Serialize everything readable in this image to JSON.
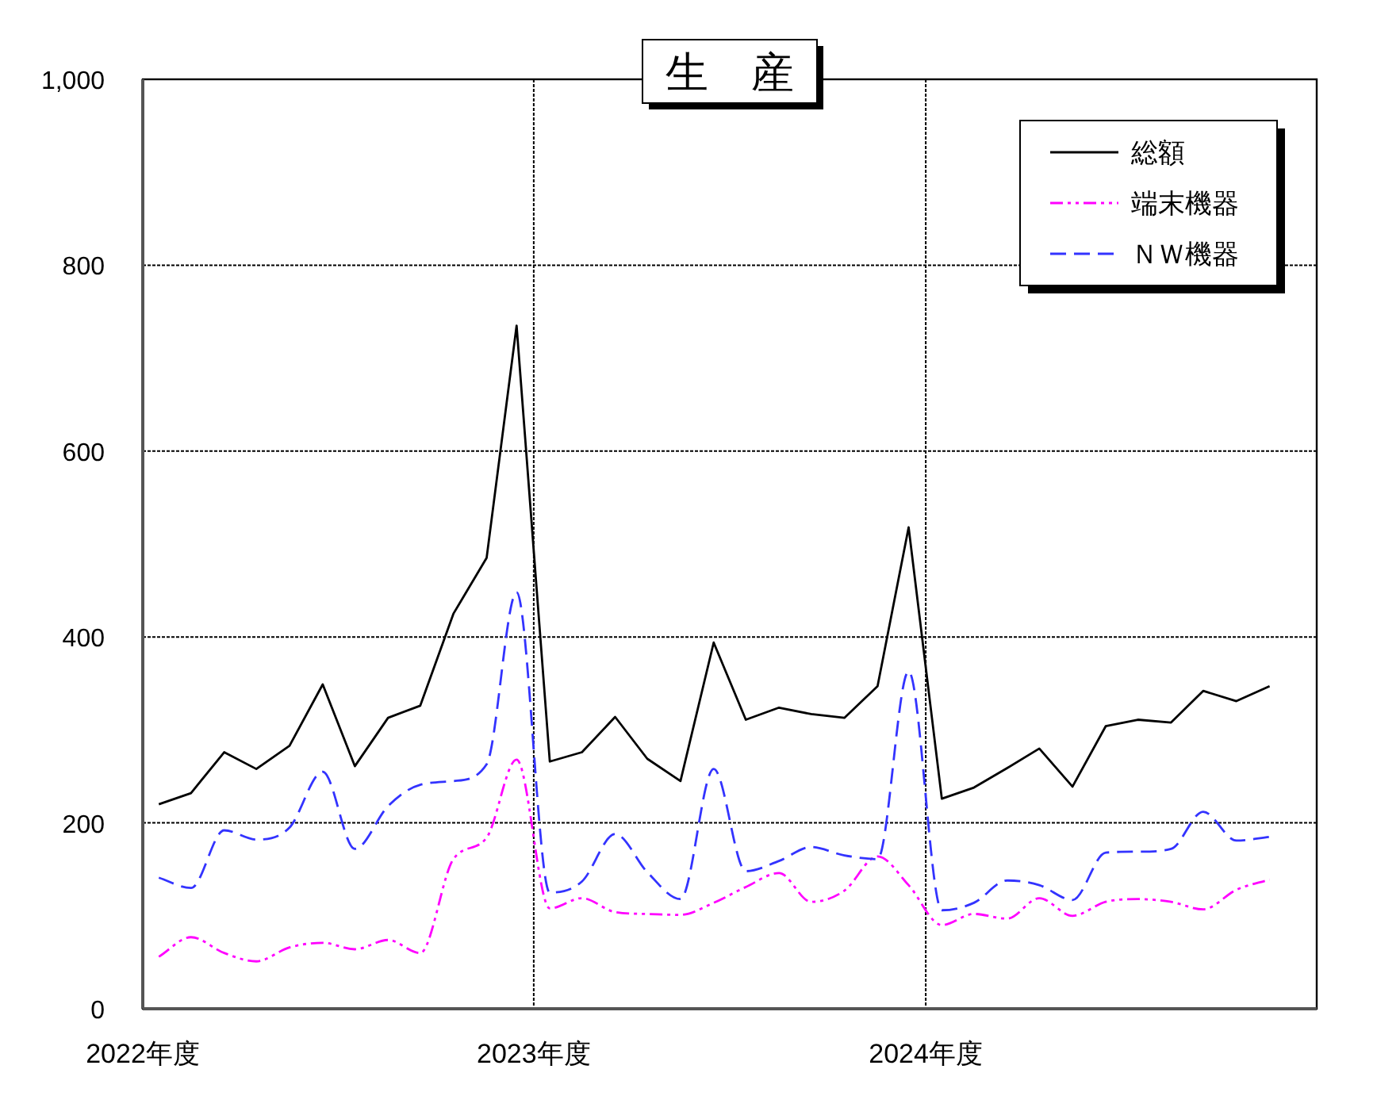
{
  "chart_data": {
    "type": "line",
    "title": "生　産",
    "x": [
      "2022-04-16",
      "2022-05-16",
      "2022-06-16",
      "2022-07-16",
      "2022-08-16",
      "2022-09-16",
      "2022-10-16",
      "2022-11-16",
      "2022-12-16",
      "2023-01-16",
      "2023-02-16",
      "2023-03-16",
      "2023-04-16",
      "2023-05-16",
      "2023-06-16",
      "2023-07-16",
      "2023-08-16",
      "2023-09-16",
      "2023-10-16",
      "2023-11-16",
      "2023-12-16",
      "2024-01-16",
      "2024-02-16",
      "2024-03-16",
      "2024-04-16",
      "2024-05-16",
      "2024-06-16",
      "2024-07-16",
      "2024-08-16",
      "2024-09-16",
      "2024-10-16",
      "2024-11-16",
      "2024-12-16",
      "2025-01-16",
      "2025-02-16"
    ],
    "series": [
      {
        "name": "総額",
        "color": "#000000",
        "line_style": "solid",
        "values": [
          220,
          232,
          276,
          258,
          283,
          349,
          261,
          313,
          326,
          425,
          485,
          735,
          266,
          276,
          314,
          269,
          245,
          394,
          311,
          324,
          317,
          313,
          347,
          518,
          226,
          238,
          259,
          280,
          239,
          304,
          311,
          308,
          342,
          331,
          347
        ]
      },
      {
        "name": "端末機器",
        "color": "#ff00ff",
        "line_style": "dotted",
        "values": [
          56,
          77,
          60,
          51,
          66,
          71,
          64,
          74,
          60,
          161,
          184,
          268,
          108,
          119,
          104,
          102,
          101,
          114,
          131,
          146,
          115,
          127,
          164,
          133,
          90,
          102,
          97,
          119,
          100,
          115,
          118,
          115,
          107,
          128,
          139
        ]
      },
      {
        "name": "ＮＷ機器",
        "color": "#3333ff",
        "line_style": "dashed",
        "values": [
          141,
          130,
          192,
          182,
          195,
          255,
          172,
          218,
          241,
          245,
          263,
          448,
          125,
          137,
          188,
          147,
          118,
          258,
          148,
          159,
          174,
          165,
          161,
          363,
          106,
          114,
          138,
          133,
          117,
          168,
          169,
          172,
          212,
          181,
          185
        ]
      }
    ],
    "xlim": [
      "2022-04-01",
      "2025-04-01"
    ],
    "xticks": [
      {
        "value": "2022-04-01",
        "label": "2022年度"
      },
      {
        "value": "2023-04-01",
        "label": "2023年度"
      },
      {
        "value": "2024-04-01",
        "label": "2024年度"
      }
    ],
    "ylim": [
      0,
      1000
    ],
    "yticks": [
      0,
      200,
      400,
      600,
      800,
      {
        "value": 1000,
        "label": "1,000"
      }
    ],
    "grid": true,
    "legend": "top right",
    "marker": "none"
  }
}
